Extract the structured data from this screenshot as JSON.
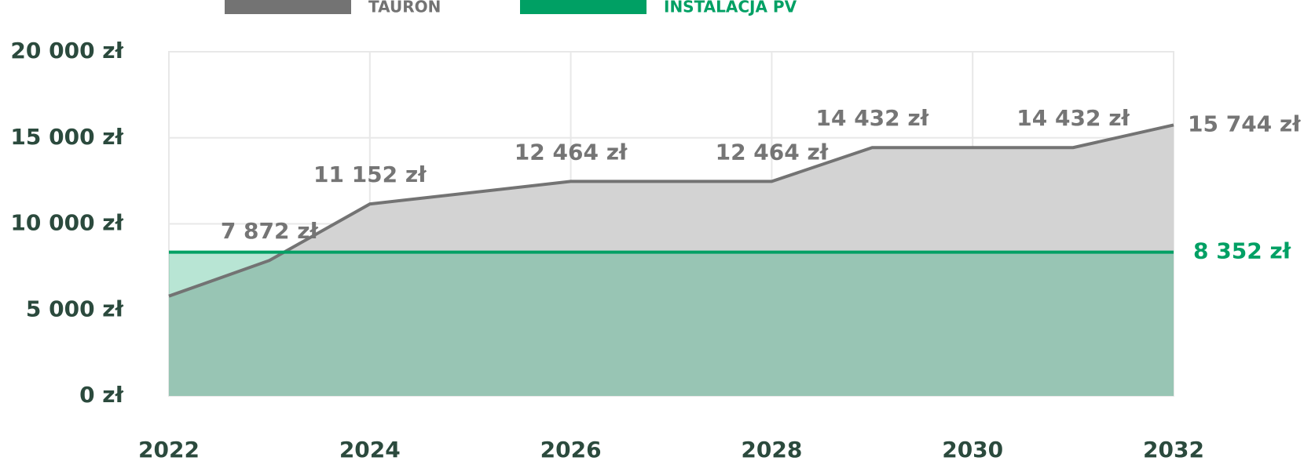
{
  "chart_data": {
    "type": "line",
    "series": [
      {
        "name": "TAURON",
        "color": "#737373",
        "x": [
          2022,
          2023,
          2024,
          2026,
          2028,
          2029,
          2031,
          2032
        ],
        "values": [
          5800,
          7872,
          11152,
          12464,
          12464,
          14432,
          14432,
          15744
        ],
        "value_labels": [
          null,
          "7 872 zł",
          "11 152 zł",
          "12 464 zł",
          "12 464 zł",
          "14 432 zł",
          "14 432 zł",
          "15 744 zł"
        ]
      },
      {
        "name": "INSTALACJA PV",
        "color": "#00a064",
        "x": [
          2022,
          2032
        ],
        "values": [
          8352,
          8352
        ],
        "value_labels": [
          null,
          "8 352 zł"
        ]
      }
    ],
    "xlim": [
      2022,
      2032
    ],
    "xticks": [
      2022,
      2024,
      2026,
      2028,
      2030,
      2032
    ],
    "ylim": [
      0,
      20000
    ],
    "yticks": [
      {
        "value": 0,
        "label": "0 zł"
      },
      {
        "value": 5000,
        "label": "5 000 zł"
      },
      {
        "value": 10000,
        "label": "10 000 zł"
      },
      {
        "value": 15000,
        "label": "15 000 zł"
      },
      {
        "value": 20000,
        "label": "20 000 zł"
      }
    ],
    "grid": true
  }
}
